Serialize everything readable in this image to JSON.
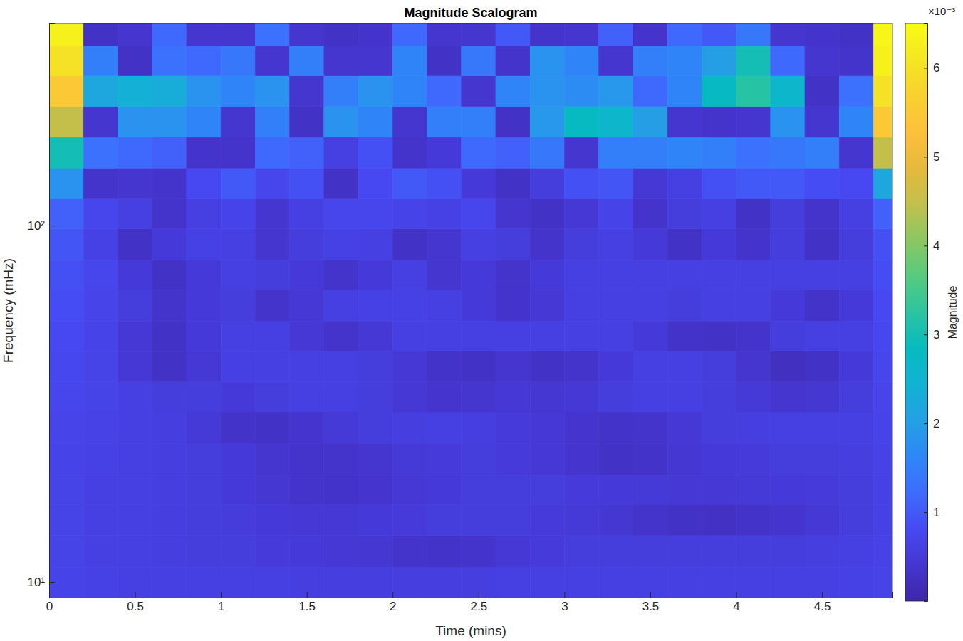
{
  "chart_data": {
    "type": "heatmap",
    "title": "Magnitude Scalogram",
    "x_label": "Time (mins)",
    "y_label": "Frequency (mHz)",
    "log": "y",
    "xlim": [
      0,
      4.91
    ],
    "xticks": [
      0,
      0.5,
      1,
      1.5,
      2,
      2.5,
      3,
      3.5,
      4,
      4.5
    ],
    "ylim": [
      9.04,
      369
    ],
    "yticks": [
      {
        "value": 10,
        "label": "10¹"
      },
      {
        "value": 100,
        "label": "10²"
      }
    ],
    "x_bins": [
      0,
      0.2,
      0.4,
      0.6,
      0.8,
      1,
      1.2,
      1.4,
      1.6,
      1.8,
      2,
      2.2,
      2.4,
      2.6,
      2.8,
      3,
      3.2,
      3.4,
      3.6,
      3.8,
      4,
      4.2,
      4.4,
      4.6,
      4.8,
      4.91
    ],
    "y_bins": [
      9.04,
      11,
      13.5,
      16.5,
      20,
      24.5,
      30,
      36.5,
      44.5,
      54,
      66,
      80,
      98,
      119,
      145,
      177,
      216,
      263,
      320,
      369
    ],
    "cells": [
      [
        0.7,
        0.65,
        0.62,
        0.6,
        0.6,
        0.6,
        0.6,
        0.58,
        0.58,
        0.58,
        0.58,
        0.58,
        0.58,
        0.6,
        0.6,
        0.6,
        0.6,
        0.6,
        0.6,
        0.6,
        0.6,
        0.6,
        0.62,
        0.64,
        0.68
      ],
      [
        0.68,
        0.62,
        0.6,
        0.58,
        0.56,
        0.55,
        0.52,
        0.5,
        0.45,
        0.42,
        0.35,
        0.32,
        0.35,
        0.45,
        0.52,
        0.55,
        0.55,
        0.55,
        0.55,
        0.55,
        0.55,
        0.56,
        0.58,
        0.6,
        0.66
      ],
      [
        0.68,
        0.62,
        0.6,
        0.58,
        0.56,
        0.54,
        0.5,
        0.45,
        0.45,
        0.5,
        0.52,
        0.55,
        0.55,
        0.55,
        0.52,
        0.48,
        0.42,
        0.35,
        0.3,
        0.28,
        0.32,
        0.38,
        0.45,
        0.55,
        0.65
      ],
      [
        0.68,
        0.62,
        0.6,
        0.58,
        0.55,
        0.5,
        0.42,
        0.35,
        0.34,
        0.38,
        0.45,
        0.5,
        0.55,
        0.55,
        0.55,
        0.52,
        0.5,
        0.48,
        0.45,
        0.45,
        0.48,
        0.5,
        0.52,
        0.56,
        0.65
      ],
      [
        0.7,
        0.65,
        0.62,
        0.58,
        0.55,
        0.5,
        0.4,
        0.35,
        0.36,
        0.4,
        0.48,
        0.52,
        0.55,
        0.52,
        0.45,
        0.38,
        0.3,
        0.32,
        0.42,
        0.5,
        0.52,
        0.55,
        0.55,
        0.58,
        0.66
      ],
      [
        0.72,
        0.66,
        0.62,
        0.58,
        0.48,
        0.32,
        0.3,
        0.38,
        0.48,
        0.55,
        0.58,
        0.6,
        0.58,
        0.52,
        0.45,
        0.38,
        0.32,
        0.35,
        0.45,
        0.55,
        0.58,
        0.6,
        0.6,
        0.62,
        0.7
      ],
      [
        0.75,
        0.68,
        0.62,
        0.55,
        0.55,
        0.5,
        0.55,
        0.6,
        0.6,
        0.55,
        0.45,
        0.38,
        0.4,
        0.45,
        0.42,
        0.45,
        0.55,
        0.6,
        0.6,
        0.55,
        0.48,
        0.4,
        0.42,
        0.55,
        0.72
      ],
      [
        0.78,
        0.68,
        0.45,
        0.3,
        0.45,
        0.6,
        0.62,
        0.62,
        0.6,
        0.55,
        0.45,
        0.32,
        0.3,
        0.4,
        0.3,
        0.35,
        0.5,
        0.6,
        0.6,
        0.55,
        0.4,
        0.25,
        0.3,
        0.5,
        0.75
      ],
      [
        0.8,
        0.7,
        0.45,
        0.3,
        0.5,
        0.62,
        0.6,
        0.45,
        0.35,
        0.45,
        0.6,
        0.62,
        0.6,
        0.62,
        0.62,
        0.62,
        0.6,
        0.5,
        0.32,
        0.3,
        0.35,
        0.55,
        0.6,
        0.6,
        0.78
      ],
      [
        0.85,
        0.72,
        0.55,
        0.35,
        0.5,
        0.55,
        0.35,
        0.45,
        0.6,
        0.65,
        0.65,
        0.62,
        0.5,
        0.35,
        0.45,
        0.6,
        0.62,
        0.6,
        0.55,
        0.6,
        0.6,
        0.5,
        0.32,
        0.5,
        0.8
      ],
      [
        0.9,
        0.75,
        0.5,
        0.3,
        0.5,
        0.6,
        0.55,
        0.5,
        0.35,
        0.5,
        0.6,
        0.4,
        0.5,
        0.35,
        0.5,
        0.62,
        0.62,
        0.62,
        0.6,
        0.6,
        0.62,
        0.6,
        0.6,
        0.6,
        0.85
      ],
      [
        0.95,
        0.65,
        0.3,
        0.5,
        0.65,
        0.6,
        0.4,
        0.55,
        0.65,
        0.6,
        0.3,
        0.4,
        0.6,
        0.55,
        0.35,
        0.55,
        0.6,
        0.5,
        0.3,
        0.5,
        0.35,
        0.55,
        0.3,
        0.55,
        0.9
      ],
      [
        1.1,
        0.75,
        0.6,
        0.35,
        0.6,
        0.7,
        0.4,
        0.6,
        0.75,
        0.75,
        0.7,
        0.65,
        0.75,
        0.4,
        0.3,
        0.45,
        0.7,
        0.35,
        0.55,
        0.6,
        0.3,
        0.55,
        0.35,
        0.6,
        1.1
      ],
      [
        1.8,
        0.35,
        0.4,
        0.35,
        0.8,
        1.0,
        0.75,
        0.9,
        0.3,
        0.8,
        1.0,
        0.9,
        0.5,
        0.3,
        0.55,
        0.9,
        0.95,
        0.45,
        0.6,
        0.9,
        1.0,
        1.0,
        0.85,
        0.8,
        2.2
      ],
      [
        3.0,
        1.3,
        1.2,
        1.1,
        0.35,
        0.35,
        1.2,
        1.1,
        0.6,
        0.9,
        0.35,
        0.5,
        1.2,
        1.1,
        1.4,
        0.4,
        1.5,
        1.5,
        1.6,
        1.5,
        1.3,
        1.4,
        1.5,
        0.4,
        4.5
      ],
      [
        4.5,
        0.4,
        1.8,
        1.8,
        1.6,
        0.4,
        1.5,
        0.3,
        1.8,
        1.6,
        0.4,
        1.5,
        1.5,
        0.3,
        1.9,
        2.8,
        2.6,
        2.0,
        0.4,
        0.35,
        0.4,
        1.8,
        0.4,
        1.6,
        5.5
      ],
      [
        5.5,
        2.2,
        2.4,
        2.3,
        1.8,
        1.6,
        1.8,
        0.4,
        1.5,
        1.8,
        1.6,
        1.2,
        0.4,
        1.6,
        1.8,
        1.7,
        1.9,
        1.2,
        1.6,
        2.8,
        3.2,
        2.6,
        0.3,
        1.3,
        6.0
      ],
      [
        6.0,
        1.5,
        0.3,
        1.3,
        1.2,
        1.4,
        0.4,
        1.5,
        0.4,
        0.4,
        1.6,
        0.3,
        1.4,
        0.35,
        1.8,
        1.6,
        0.4,
        1.5,
        1.6,
        2.0,
        3.0,
        1.2,
        0.4,
        0.35,
        6.3
      ],
      [
        6.3,
        0.3,
        0.4,
        1.2,
        0.4,
        0.4,
        1.3,
        0.4,
        0.3,
        0.35,
        1.2,
        0.4,
        0.4,
        1.0,
        0.35,
        0.4,
        1.1,
        0.35,
        1.2,
        1.0,
        1.4,
        0.4,
        0.35,
        0.3,
        6.4
      ]
    ],
    "colorbar": {
      "label": "Magnitude",
      "range": [
        0,
        6.5
      ],
      "ticks": [
        1,
        2,
        3,
        4,
        5,
        6
      ],
      "multiplier_label": "×10⁻³"
    }
  }
}
